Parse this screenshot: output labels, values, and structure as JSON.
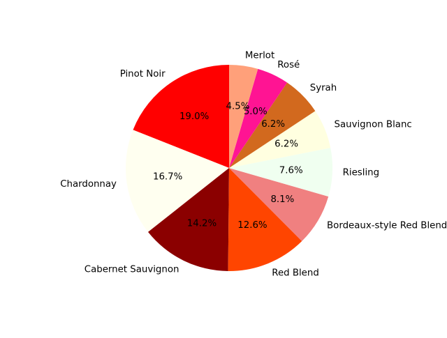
{
  "chart_data": {
    "type": "pie",
    "title": "",
    "start_angle_deg": 90,
    "direction": "counterclockwise",
    "slices": [
      {
        "label": "Pinot Noir",
        "value": 19.0,
        "pct_label": "19.0%",
        "color": "#ff0000"
      },
      {
        "label": "Chardonnay",
        "value": 16.7,
        "pct_label": "16.7%",
        "color": "#fffff0"
      },
      {
        "label": "Cabernet Sauvignon",
        "value": 14.2,
        "pct_label": "14.2%",
        "color": "#8b0000"
      },
      {
        "label": "Red Blend",
        "value": 12.6,
        "pct_label": "12.6%",
        "color": "#ff4500"
      },
      {
        "label": "Bordeaux-style Red Blend",
        "value": 8.1,
        "pct_label": "8.1%",
        "color": "#f08080"
      },
      {
        "label": "Riesling",
        "value": 7.6,
        "pct_label": "7.6%",
        "color": "#f0fff0"
      },
      {
        "label": "Sauvignon Blanc",
        "value": 6.2,
        "pct_label": "6.2%",
        "color": "#ffffe0"
      },
      {
        "label": "Syrah",
        "value": 6.2,
        "pct_label": "6.2%",
        "color": "#d2691e"
      },
      {
        "label": "Rosé",
        "value": 5.0,
        "pct_label": "5.0%",
        "color": "#ff1493"
      },
      {
        "label": "Merlot",
        "value": 4.5,
        "pct_label": "4.5%",
        "color": "#ffa07a"
      }
    ]
  }
}
